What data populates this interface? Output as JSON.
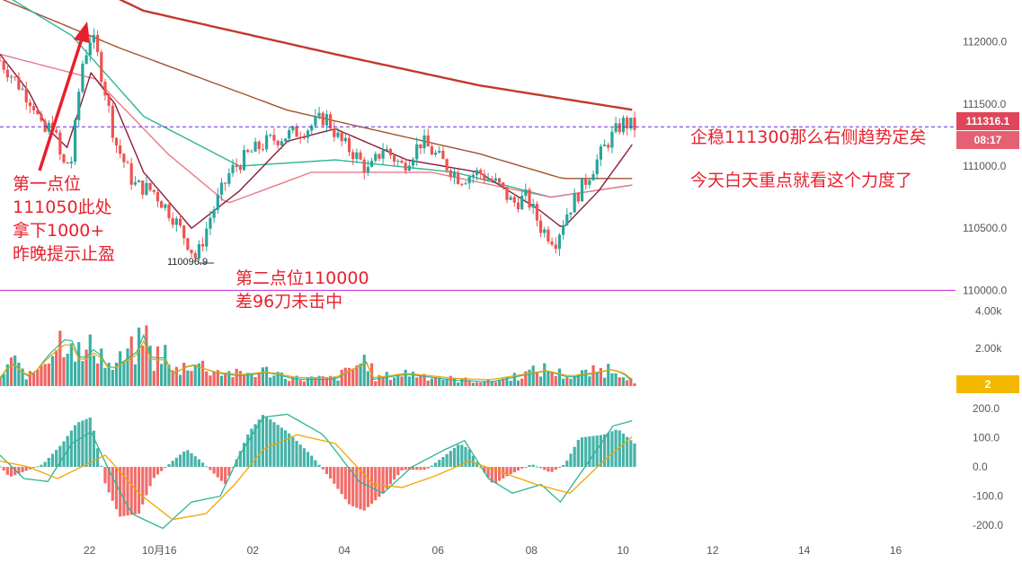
{
  "chart_data": {
    "type": "candlestick",
    "price_axis": {
      "ticks": [
        112000.0,
        111500.0,
        111000.0,
        110500.0,
        110000.0
      ],
      "labels": [
        "112000.0",
        "111500.0",
        "111000.0",
        "110500.0",
        "110000.0"
      ],
      "range": [
        109880,
        112250
      ]
    },
    "volume_axis": {
      "ticks": [
        4000,
        2000
      ],
      "labels": [
        "4.00k",
        "2.00k"
      ],
      "range": [
        0,
        4300
      ]
    },
    "macd_axis": {
      "ticks": [
        200,
        100,
        0,
        -100,
        -200
      ],
      "labels": [
        "200.0",
        "100.0",
        "0.0",
        "-100.0",
        "-200.0"
      ],
      "range": [
        -230,
        215
      ]
    },
    "time_axis": {
      "labels": [
        "22",
        "10月16",
        "02",
        "04",
        "06",
        "08",
        "10",
        "12",
        "14",
        "16"
      ]
    },
    "last_price": {
      "label": "111316.1",
      "countdown": "08:17"
    },
    "volume_badge": "2",
    "reference_line": 110000,
    "current_line": 111316.1,
    "low_marker": {
      "label": "110096.9",
      "value": 110096.9
    },
    "key_points": [
      {
        "t": 0,
        "p": 111850
      },
      {
        "t": 8,
        "p": 111650
      },
      {
        "t": 14,
        "p": 111500
      },
      {
        "t": 18,
        "p": 111250
      },
      {
        "t": 22,
        "p": 111350
      },
      {
        "t": 26,
        "p": 111000
      },
      {
        "t": 30,
        "p": 111050
      },
      {
        "t": 34,
        "p": 111800
      },
      {
        "t": 38,
        "p": 112050
      },
      {
        "t": 40,
        "p": 111950
      },
      {
        "t": 44,
        "p": 111600
      },
      {
        "t": 48,
        "p": 111200
      },
      {
        "t": 56,
        "p": 110850
      },
      {
        "t": 64,
        "p": 110800
      },
      {
        "t": 72,
        "p": 110600
      },
      {
        "t": 78,
        "p": 110400
      },
      {
        "t": 82,
        "p": 110250
      },
      {
        "t": 88,
        "p": 110600
      },
      {
        "t": 96,
        "p": 110950
      },
      {
        "t": 104,
        "p": 111100
      },
      {
        "t": 112,
        "p": 111200
      },
      {
        "t": 120,
        "p": 111250
      },
      {
        "t": 128,
        "p": 111300
      },
      {
        "t": 136,
        "p": 111400
      },
      {
        "t": 142,
        "p": 111200
      },
      {
        "t": 148,
        "p": 111100
      },
      {
        "t": 154,
        "p": 110950
      },
      {
        "t": 160,
        "p": 111150
      },
      {
        "t": 168,
        "p": 111000
      },
      {
        "t": 176,
        "p": 111200
      },
      {
        "t": 184,
        "p": 111050
      },
      {
        "t": 192,
        "p": 110900
      },
      {
        "t": 200,
        "p": 110950
      },
      {
        "t": 208,
        "p": 110850
      },
      {
        "t": 214,
        "p": 110700
      },
      {
        "t": 220,
        "p": 110750
      },
      {
        "t": 226,
        "p": 110500
      },
      {
        "t": 232,
        "p": 110400
      },
      {
        "t": 236,
        "p": 110600
      },
      {
        "t": 242,
        "p": 110800
      },
      {
        "t": 248,
        "p": 111000
      },
      {
        "t": 254,
        "p": 111200
      },
      {
        "t": 260,
        "p": 111350
      },
      {
        "t": 265,
        "p": 111316
      }
    ],
    "ma_lines": [
      {
        "color": "#c0392b",
        "points": [
          {
            "t": 0,
            "p": 112800
          },
          {
            "t": 60,
            "p": 112250
          },
          {
            "t": 140,
            "p": 111900
          },
          {
            "t": 200,
            "p": 111650
          },
          {
            "t": 265,
            "p": 111450
          }
        ]
      },
      {
        "color": "#a0522d",
        "points": [
          {
            "t": 0,
            "p": 112350
          },
          {
            "t": 50,
            "p": 111950
          },
          {
            "t": 120,
            "p": 111450
          },
          {
            "t": 200,
            "p": 111100
          },
          {
            "t": 235,
            "p": 110900
          },
          {
            "t": 265,
            "p": 110900
          }
        ]
      },
      {
        "color": "#2bb596",
        "points": [
          {
            "t": 0,
            "p": 112400
          },
          {
            "t": 30,
            "p": 112050
          },
          {
            "t": 60,
            "p": 111400
          },
          {
            "t": 100,
            "p": 111000
          },
          {
            "t": 140,
            "p": 111050
          },
          {
            "t": 190,
            "p": 110950
          },
          {
            "t": 230,
            "p": 110750
          },
          {
            "t": 265,
            "p": 110850
          }
        ]
      },
      {
        "color": "#e87a8a",
        "points": [
          {
            "t": 0,
            "p": 111900
          },
          {
            "t": 40,
            "p": 111700
          },
          {
            "t": 70,
            "p": 111100
          },
          {
            "t": 95,
            "p": 110700
          },
          {
            "t": 130,
            "p": 110950
          },
          {
            "t": 180,
            "p": 110950
          },
          {
            "t": 230,
            "p": 110750
          },
          {
            "t": 265,
            "p": 110850
          }
        ]
      },
      {
        "color": "#8b1a3a",
        "points": [
          {
            "t": 0,
            "p": 111900
          },
          {
            "t": 12,
            "p": 111600
          },
          {
            "t": 20,
            "p": 111300
          },
          {
            "t": 28,
            "p": 111150
          },
          {
            "t": 38,
            "p": 111750
          },
          {
            "t": 48,
            "p": 111500
          },
          {
            "t": 60,
            "p": 110950
          },
          {
            "t": 80,
            "p": 110500
          },
          {
            "t": 100,
            "p": 110800
          },
          {
            "t": 120,
            "p": 111200
          },
          {
            "t": 140,
            "p": 111300
          },
          {
            "t": 170,
            "p": 111050
          },
          {
            "t": 200,
            "p": 110950
          },
          {
            "t": 225,
            "p": 110650
          },
          {
            "t": 235,
            "p": 110500
          },
          {
            "t": 250,
            "p": 110800
          },
          {
            "t": 265,
            "p": 111200
          }
        ]
      }
    ],
    "volume_profile": [
      {
        "t": 0,
        "v": 400
      },
      {
        "t": 5,
        "v": 1500
      },
      {
        "t": 8,
        "v": 900
      },
      {
        "t": 13,
        "v": 500
      },
      {
        "t": 20,
        "v": 1800
      },
      {
        "t": 29,
        "v": 3000
      },
      {
        "t": 34,
        "v": 1400
      },
      {
        "t": 40,
        "v": 2300
      },
      {
        "t": 46,
        "v": 900
      },
      {
        "t": 58,
        "v": 2100
      },
      {
        "t": 60,
        "v": 3000
      },
      {
        "t": 64,
        "v": 1300
      },
      {
        "t": 68,
        "v": 2000
      },
      {
        "t": 72,
        "v": 700
      },
      {
        "t": 80,
        "v": 1300
      },
      {
        "t": 90,
        "v": 800
      },
      {
        "t": 100,
        "v": 600
      },
      {
        "t": 112,
        "v": 800
      },
      {
        "t": 124,
        "v": 400
      },
      {
        "t": 140,
        "v": 400
      },
      {
        "t": 154,
        "v": 1500
      },
      {
        "t": 156,
        "v": 400
      },
      {
        "t": 170,
        "v": 700
      },
      {
        "t": 190,
        "v": 350
      },
      {
        "t": 205,
        "v": 250
      },
      {
        "t": 228,
        "v": 900
      },
      {
        "t": 238,
        "v": 500
      },
      {
        "t": 250,
        "v": 800
      },
      {
        "t": 256,
        "v": 1000
      },
      {
        "t": 262,
        "v": 600
      },
      {
        "t": 265,
        "v": 100
      }
    ],
    "macd_hist": [
      {
        "t": 0,
        "v": 2
      },
      {
        "t": 4,
        "v": -35
      },
      {
        "t": 12,
        "v": -10
      },
      {
        "t": 18,
        "v": 10
      },
      {
        "t": 26,
        "v": 80
      },
      {
        "t": 32,
        "v": 150
      },
      {
        "t": 38,
        "v": 170
      },
      {
        "t": 44,
        "v": -60
      },
      {
        "t": 50,
        "v": -170
      },
      {
        "t": 58,
        "v": -160
      },
      {
        "t": 64,
        "v": -40
      },
      {
        "t": 72,
        "v": 20
      },
      {
        "t": 78,
        "v": 60
      },
      {
        "t": 84,
        "v": 20
      },
      {
        "t": 94,
        "v": -60
      },
      {
        "t": 104,
        "v": 120
      },
      {
        "t": 110,
        "v": 180
      },
      {
        "t": 120,
        "v": 120
      },
      {
        "t": 130,
        "v": 40
      },
      {
        "t": 138,
        "v": -40
      },
      {
        "t": 146,
        "v": -130
      },
      {
        "t": 152,
        "v": -150
      },
      {
        "t": 160,
        "v": -90
      },
      {
        "t": 168,
        "v": -10
      },
      {
        "t": 178,
        "v": -10
      },
      {
        "t": 186,
        "v": 40
      },
      {
        "t": 192,
        "v": 80
      },
      {
        "t": 196,
        "v": 60
      },
      {
        "t": 200,
        "v": 5
      },
      {
        "t": 206,
        "v": -60
      },
      {
        "t": 212,
        "v": -30
      },
      {
        "t": 222,
        "v": 10
      },
      {
        "t": 230,
        "v": -20
      },
      {
        "t": 236,
        "v": 10
      },
      {
        "t": 242,
        "v": 100
      },
      {
        "t": 252,
        "v": 110
      },
      {
        "t": 258,
        "v": 130
      },
      {
        "t": 265,
        "v": 80
      }
    ],
    "macd_dif": [
      {
        "t": 0,
        "v": 40
      },
      {
        "t": 10,
        "v": -40
      },
      {
        "t": 20,
        "v": -50
      },
      {
        "t": 30,
        "v": 80
      },
      {
        "t": 38,
        "v": 120
      },
      {
        "t": 46,
        "v": -20
      },
      {
        "t": 55,
        "v": -160
      },
      {
        "t": 68,
        "v": -210
      },
      {
        "t": 80,
        "v": -120
      },
      {
        "t": 92,
        "v": -100
      },
      {
        "t": 100,
        "v": 40
      },
      {
        "t": 110,
        "v": 170
      },
      {
        "t": 120,
        "v": 180
      },
      {
        "t": 135,
        "v": 110
      },
      {
        "t": 150,
        "v": -50
      },
      {
        "t": 160,
        "v": -90
      },
      {
        "t": 172,
        "v": 0
      },
      {
        "t": 186,
        "v": 60
      },
      {
        "t": 194,
        "v": 90
      },
      {
        "t": 204,
        "v": -40
      },
      {
        "t": 214,
        "v": -90
      },
      {
        "t": 226,
        "v": -60
      },
      {
        "t": 234,
        "v": -120
      },
      {
        "t": 246,
        "v": 20
      },
      {
        "t": 256,
        "v": 140
      },
      {
        "t": 265,
        "v": 160
      }
    ],
    "macd_dea": [
      {
        "t": 0,
        "v": 20
      },
      {
        "t": 12,
        "v": 0
      },
      {
        "t": 24,
        "v": -40
      },
      {
        "t": 34,
        "v": 0
      },
      {
        "t": 44,
        "v": 40
      },
      {
        "t": 58,
        "v": -90
      },
      {
        "t": 72,
        "v": -180
      },
      {
        "t": 86,
        "v": -160
      },
      {
        "t": 98,
        "v": -60
      },
      {
        "t": 110,
        "v": 60
      },
      {
        "t": 124,
        "v": 110
      },
      {
        "t": 140,
        "v": 80
      },
      {
        "t": 156,
        "v": -60
      },
      {
        "t": 168,
        "v": -70
      },
      {
        "t": 182,
        "v": -30
      },
      {
        "t": 196,
        "v": 20
      },
      {
        "t": 210,
        "v": -20
      },
      {
        "t": 224,
        "v": -60
      },
      {
        "t": 238,
        "v": -90
      },
      {
        "t": 252,
        "v": 20
      },
      {
        "t": 265,
        "v": 110
      }
    ]
  },
  "annotations": {
    "point1": "第一点位\n111050此处\n拿下1000+\n昨晚提示止盈",
    "point2": "第二点位110000\n差96刀未击中",
    "right1": "企稳111300那么右侧趋势定矣",
    "right2": "今天白天重点就看这个力度了"
  },
  "colors": {
    "up": "#26a69a",
    "down": "#ef5350",
    "arrow": "#e8202c",
    "line_110000": "#c026d3",
    "line_current": "#6d28d9",
    "badge_price": "#e0455a",
    "badge_vol": "#f5b800"
  }
}
